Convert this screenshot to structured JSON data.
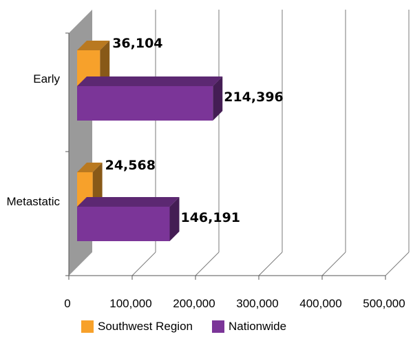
{
  "chart_data": {
    "type": "bar",
    "orientation": "horizontal",
    "style": "3d",
    "categories": [
      "Early",
      "Metastatic"
    ],
    "series": [
      {
        "name": "Southwest Region",
        "values": [
          36104,
          24568
        ],
        "labels": [
          "36,104",
          "24,568"
        ],
        "color": "#F7A12B"
      },
      {
        "name": "Nationwide",
        "values": [
          214396,
          146191
        ],
        "labels": [
          "214,396",
          "146,191"
        ],
        "color": "#7B3598"
      }
    ],
    "xlim": [
      0,
      500000
    ],
    "x_ticks": [
      "0",
      "100,000",
      "200,000",
      "300,000",
      "400,000",
      "500,000"
    ],
    "x_tick_values": [
      0,
      100000,
      200000,
      300000,
      400000,
      500000
    ],
    "grid": true,
    "legend": "bottom"
  },
  "legend_items": [
    {
      "label": "Southwest Region",
      "color": "#F7A12B"
    },
    {
      "label": "Nationwide",
      "color": "#7B3598"
    }
  ]
}
